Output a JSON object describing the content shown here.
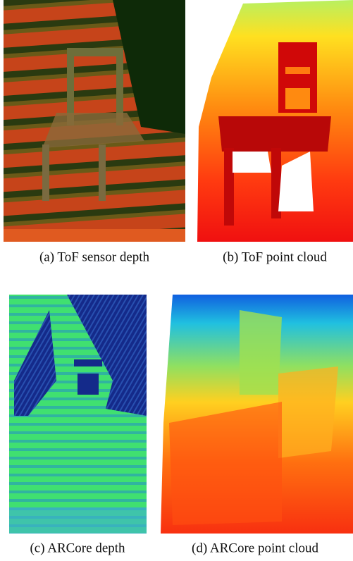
{
  "figure": {
    "panels": [
      {
        "caption": "(a) ToF sensor depth"
      },
      {
        "caption": "(b) ToF point cloud"
      },
      {
        "caption": "(c) ARCore depth"
      },
      {
        "caption": "(d) ARCore point cloud"
      }
    ]
  }
}
